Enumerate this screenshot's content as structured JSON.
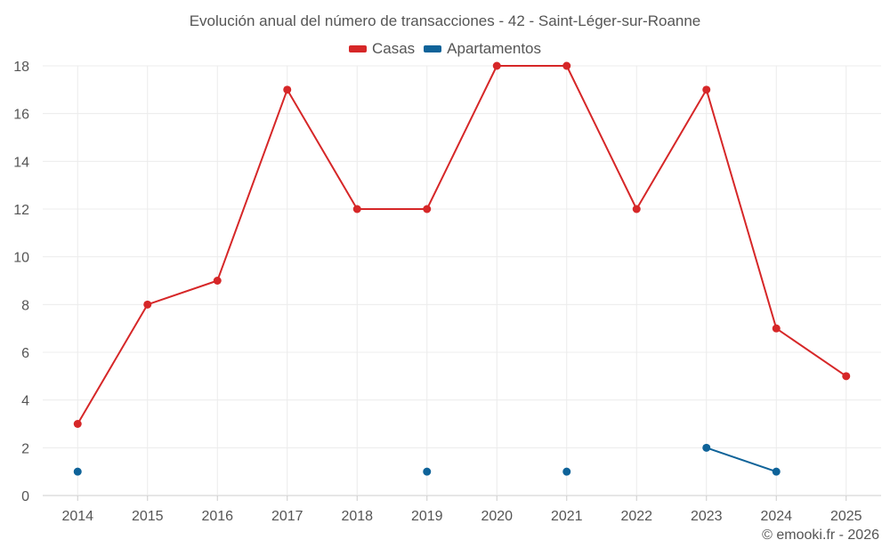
{
  "chart_data": {
    "type": "line",
    "title": "Evolución anual del número de transacciones - 42 - Saint-Léger-sur-Roanne",
    "categories": [
      "2014",
      "2015",
      "2016",
      "2017",
      "2018",
      "2019",
      "2020",
      "2021",
      "2022",
      "2023",
      "2024",
      "2025"
    ],
    "series": [
      {
        "name": "Casas",
        "color": "#d62728",
        "values": [
          3,
          8,
          9,
          17,
          12,
          12,
          18,
          18,
          12,
          17,
          7,
          5
        ]
      },
      {
        "name": "Apartamentos",
        "color": "#0f6399",
        "values": [
          1,
          null,
          null,
          null,
          null,
          1,
          null,
          1,
          null,
          2,
          1,
          null
        ]
      }
    ],
    "ylim": [
      0,
      18
    ],
    "yticks": [
      0,
      2,
      4,
      6,
      8,
      10,
      12,
      14,
      16,
      18
    ],
    "xlabel": "",
    "ylabel": "",
    "grid": true,
    "legend": "top-center"
  },
  "credit": "© emooki.fr - 2026"
}
